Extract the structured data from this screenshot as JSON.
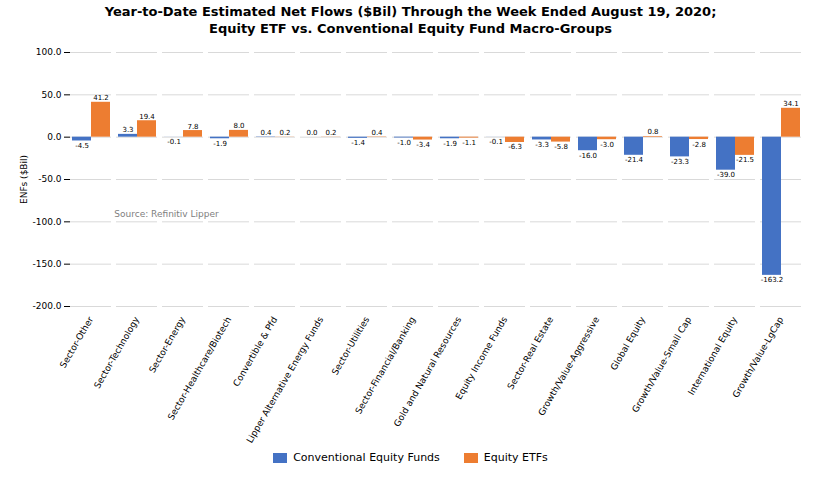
{
  "chart_data": {
    "type": "bar",
    "title": "Year-to-Date Estimated Net Flows ($Bil) Through the Week Ended August 19, 2020;\nEquity ETF vs. Conventional  Equity Fund Macro-Groups",
    "ylabel": "ENFs ($Bil)",
    "annotations": [
      "Source: Refinitiv Lipper"
    ],
    "categories": [
      "Sector-Other",
      "Sector-Technology",
      "Sector-Energy",
      "Sector-Healthcare/Biotech",
      "Convertible & Pfd",
      "Lipper Alternative Energy Funds",
      "Sector-Utilities",
      "Sector-Financial/Banking",
      "Gold and Natural Resources",
      "Equity Income Funds",
      "Sector-Real Estate",
      "Growth/Value-Aggressive",
      "Global Equity",
      "Growth/Value-Small Cap",
      "International Equity",
      "Growth/Value-LgCap"
    ],
    "series": [
      {
        "name": "Conventional Equity Funds",
        "color": "#4472c4",
        "values": [
          -4.5,
          3.3,
          -0.1,
          -1.9,
          0.4,
          0.0,
          -1.4,
          -1.0,
          -1.9,
          -0.1,
          -3.3,
          -16.0,
          -21.4,
          -23.3,
          -39.0,
          -163.2
        ],
        "value_labels": [
          "-4.5",
          "3.3",
          "-0.1",
          "-1.9",
          "0.4",
          "0.0",
          "-1.4",
          "-1.0",
          "-1.9",
          "-0.1",
          "-3.3",
          "-16.0",
          "-21.4",
          "-23.3",
          "-39.0",
          "-163.2"
        ]
      },
      {
        "name": "Equity ETFs",
        "color": "#ed7d31",
        "values": [
          41.2,
          19.4,
          7.8,
          8.0,
          0.2,
          0.2,
          0.4,
          -3.4,
          -1.1,
          -6.3,
          -5.8,
          -3.0,
          0.8,
          -2.8,
          -21.5,
          34.1
        ],
        "value_labels": [
          "41.2",
          "19.4",
          "7.8",
          "8.0",
          "0.2",
          "0.2",
          "0.4",
          "-3.4",
          "-1.1",
          "-6.3",
          "-5.8",
          "-3.0",
          "0.8",
          "-2.8",
          "-21.5",
          "34.1"
        ]
      }
    ],
    "ylim": [
      -200,
      100
    ],
    "yticks": [
      {
        "value": 100,
        "label": "100.0"
      },
      {
        "value": 50,
        "label": "50.0"
      },
      {
        "value": 0,
        "label": "0.0"
      },
      {
        "value": -50,
        "label": "-50.0"
      },
      {
        "value": -100,
        "label": "-100.0"
      },
      {
        "value": -150,
        "label": "-150.0"
      },
      {
        "value": -200,
        "label": "-200.0"
      }
    ],
    "grid": true,
    "legend": "bottom",
    "data_labels": true
  }
}
